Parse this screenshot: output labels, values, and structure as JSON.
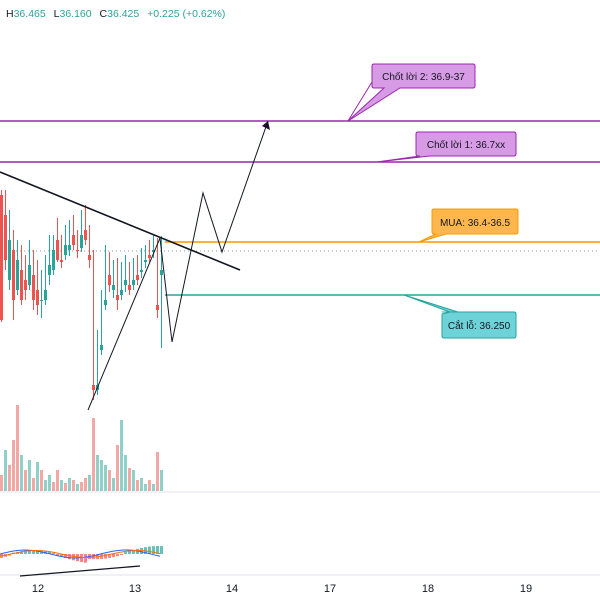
{
  "header": {
    "h_label": "H",
    "h_value": "36.465",
    "l_label": "L",
    "l_value": "36.160",
    "c_label": "C",
    "c_value": "36.425",
    "change": "+0.225 (+0.62%)"
  },
  "annotations": {
    "tp2": "Chốt lời 2: 36.9-37",
    "tp1": "Chốt lời 1: 36.7xx",
    "buy": "MUA: 36.4-36.5",
    "sl": "Cắt lỗ: 36.250"
  },
  "chart_data": {
    "type": "candlestick",
    "x_axis_ticks": [
      "12",
      "13",
      "14",
      "17",
      "18",
      "19"
    ],
    "price_levels": [
      {
        "label": "Chốt lời 2: 36.9-37",
        "value": 36.95,
        "color": "#9c27b0"
      },
      {
        "label": "Chốt lời 1: 36.7xx",
        "value": 36.75,
        "color": "#9c27b0"
      },
      {
        "label": "MUA: 36.4-36.5",
        "value": 36.45,
        "color": "#ff9800"
      },
      {
        "label": "Cắt lỗ: 36.250",
        "value": 36.25,
        "color": "#26a69a"
      }
    ],
    "last_bar": {
      "high": 36.465,
      "low": 36.16,
      "close": 36.425,
      "change": 0.225,
      "change_pct": 0.62
    },
    "candle_colors": {
      "up": "#26a69a",
      "down": "#ef5350"
    },
    "volume_colors": {
      "up": "#8fd1c8",
      "down": "#f4a8a6"
    },
    "grid": false
  }
}
